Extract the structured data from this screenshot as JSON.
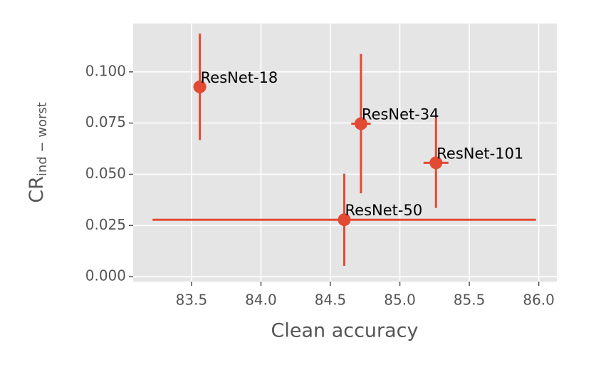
{
  "chart_data": {
    "type": "scatter",
    "xlabel": "Clean accuracy",
    "ylabel": "CR",
    "ylabel_sub": "ind − worst",
    "xlim": [
      83.08,
      86.13
    ],
    "ylim": [
      -0.0024,
      0.1236
    ],
    "xticks": [
      {
        "value": 83.5,
        "label": "83.5"
      },
      {
        "value": 84.0,
        "label": "84.0"
      },
      {
        "value": 84.5,
        "label": "84.5"
      },
      {
        "value": 85.0,
        "label": "85.0"
      },
      {
        "value": 85.5,
        "label": "85.5"
      },
      {
        "value": 86.0,
        "label": "86.0"
      }
    ],
    "yticks": [
      {
        "value": 0,
        "label": "0.000"
      },
      {
        "value": 0.025,
        "label": "0.025"
      },
      {
        "value": 0.05,
        "label": "0.050"
      },
      {
        "value": 0.075,
        "label": "0.075"
      },
      {
        "value": 0.1,
        "label": "0.100"
      }
    ],
    "grid": true,
    "series": [
      {
        "color": "#E24A33",
        "labels": [
          "ResNet-18",
          "ResNet-34",
          "ResNet-101",
          "ResNet-50"
        ],
        "x": [
          83.56,
          84.72,
          85.26,
          84.6
        ],
        "values": [
          0.0927,
          0.0747,
          0.0556,
          0.0278
        ],
        "xerr": [
          0.046,
          0.07,
          0.09,
          1.38
        ],
        "yerr": [
          0.026,
          0.034,
          0.022,
          0.0225
        ]
      }
    ]
  }
}
